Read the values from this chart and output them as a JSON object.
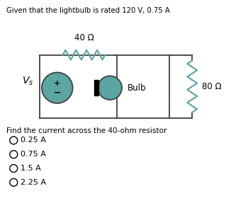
{
  "title": "Given that the lightbulb is rated 120 V, 0.75 A",
  "background_color": "#ffffff",
  "circuit": {
    "resistor_40_label": "40 Ω",
    "resistor_80_label": "80 Ω",
    "bulb_label": "Bulb",
    "vs_label": "V",
    "vs_subscript": "s"
  },
  "question": "Find the current across the 40-ohm resistor",
  "options": [
    "0.25 A",
    "0.75 A",
    "1.5 A",
    "2.25 A"
  ],
  "colors": {
    "teal": "#5ba5a2",
    "wire": "#404040",
    "text": "#000000"
  },
  "teal": "#5ba5a2",
  "wire_color": "#404040"
}
